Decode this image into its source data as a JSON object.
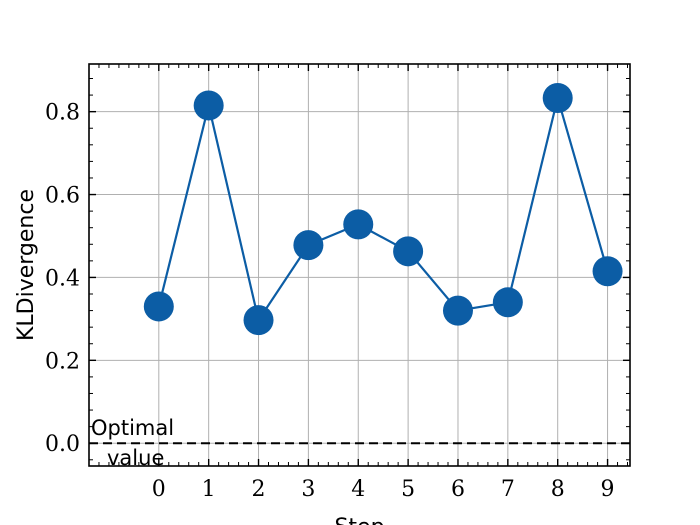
{
  "chart_data": {
    "type": "line",
    "title": "",
    "xlabel": "Step",
    "ylabel": "KLDivergence",
    "x": [
      0,
      1,
      2,
      3,
      4,
      5,
      6,
      7,
      8,
      9
    ],
    "series": [
      {
        "values": [
          0.33,
          0.815,
          0.297,
          0.478,
          0.528,
          0.463,
          0.32,
          0.34,
          0.833,
          0.415
        ],
        "color": "#0C5DA5",
        "marker": "circle"
      }
    ],
    "xticks": [
      "0",
      "1",
      "2",
      "3",
      "4",
      "5",
      "6",
      "7",
      "8",
      "9"
    ],
    "yticks": [
      "0.0",
      "0.2",
      "0.4",
      "0.6",
      "0.8"
    ],
    "xlim": [
      -1.4,
      9.45
    ],
    "ylim": [
      -0.055,
      0.915
    ],
    "grid": true,
    "reference_line": {
      "y": 0,
      "style": "dashed",
      "label_line1": "Optimal",
      "label_line2": "value"
    }
  }
}
